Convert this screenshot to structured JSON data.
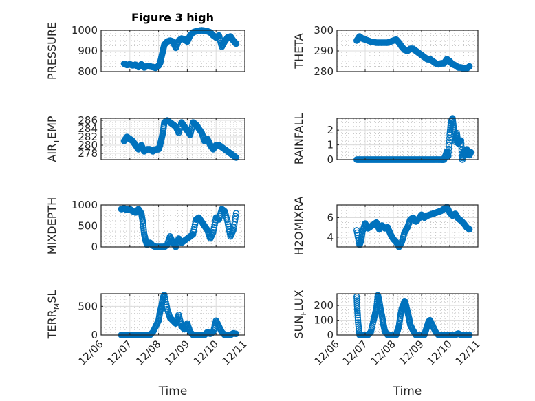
{
  "figure_title": "Figure 3 high",
  "chart_data": [
    {
      "type": "scatter",
      "title": "Figure 3 high",
      "xlabel": "",
      "ylabel": "PRESSURE",
      "ylabel_parts": [
        "PRESSURE"
      ],
      "ylim": [
        800,
        1000
      ],
      "yticks": [
        800,
        900,
        1000
      ],
      "ytick_labels": [
        "800",
        "900",
        "1000"
      ],
      "xlim_days": [
        0,
        5
      ],
      "xtick_labels": [],
      "grid": true,
      "minor_grid": true,
      "marker": "o",
      "color": "#0072BD",
      "x": [
        0.8,
        0.9,
        1.0,
        1.1,
        1.2,
        1.3,
        1.4,
        1.5,
        1.6,
        1.7,
        1.8,
        1.9,
        2.0,
        2.05,
        2.1,
        2.15,
        2.2,
        2.3,
        2.4,
        2.5,
        2.6,
        2.7,
        2.8,
        2.9,
        3.0,
        3.1,
        3.2,
        3.3,
        3.4,
        3.5,
        3.6,
        3.7,
        3.8,
        3.9,
        4.0,
        4.1,
        4.2,
        4.3,
        4.4,
        4.5,
        4.6,
        4.7
      ],
      "y": [
        838,
        832,
        835,
        830,
        833,
        822,
        835,
        820,
        826,
        825,
        822,
        818,
        828,
        840,
        870,
        900,
        930,
        945,
        950,
        945,
        915,
        950,
        960,
        955,
        945,
        975,
        990,
        995,
        998,
        1000,
        998,
        995,
        990,
        975,
        965,
        975,
        920,
        945,
        965,
        970,
        950,
        935
      ]
    },
    {
      "type": "scatter",
      "ylabel": "THETA",
      "ylabel_parts": [
        "THETA"
      ],
      "ylim": [
        280,
        300
      ],
      "yticks": [
        280,
        290,
        300
      ],
      "ytick_labels": [
        "280",
        "290",
        "300"
      ],
      "xlim_days": [
        0,
        5
      ],
      "xtick_labels": [],
      "grid": true,
      "minor_grid": true,
      "marker": "o",
      "color": "#0072BD",
      "x": [
        0.7,
        0.8,
        0.9,
        1.0,
        1.2,
        1.4,
        1.6,
        1.8,
        2.0,
        2.1,
        2.2,
        2.3,
        2.4,
        2.5,
        2.6,
        2.7,
        2.8,
        2.9,
        3.0,
        3.1,
        3.2,
        3.3,
        3.4,
        3.5,
        3.6,
        3.7,
        3.8,
        3.9,
        4.0,
        4.1,
        4.2,
        4.3,
        4.4,
        4.5,
        4.6,
        4.7
      ],
      "y": [
        295,
        297,
        296,
        295.5,
        294.5,
        294,
        294,
        294,
        295,
        295.5,
        294,
        292,
        290.5,
        290,
        291,
        291,
        290,
        289,
        288,
        287,
        286,
        286,
        285,
        284,
        283.5,
        284,
        284,
        286,
        285,
        283.5,
        283,
        282,
        282,
        281.5,
        281.5,
        282.5
      ]
    },
    {
      "type": "scatter",
      "ylabel": "AIR_TEMP",
      "ylabel_parts": [
        "AIR",
        "T",
        "EMP"
      ],
      "ylim": [
        276.5,
        286.5
      ],
      "yticks": [
        278,
        280,
        282,
        284,
        286
      ],
      "ytick_labels": [
        "278",
        "280",
        "282",
        "284",
        "286"
      ],
      "xlim_days": [
        0,
        5
      ],
      "xtick_labels": [],
      "grid": true,
      "minor_grid": true,
      "marker": "o",
      "color": "#0072BD",
      "x": [
        0.8,
        0.9,
        1.0,
        1.1,
        1.2,
        1.3,
        1.4,
        1.5,
        1.6,
        1.7,
        1.8,
        1.9,
        2.0,
        2.05,
        2.1,
        2.15,
        2.2,
        2.3,
        2.4,
        2.5,
        2.6,
        2.7,
        2.8,
        2.9,
        3.0,
        3.1,
        3.2,
        3.3,
        3.4,
        3.5,
        3.6,
        3.7,
        3.8,
        3.9,
        4.0,
        4.1,
        4.2,
        4.3,
        4.4,
        4.5,
        4.6,
        4.7
      ],
      "y": [
        281,
        282,
        281.5,
        281,
        280,
        279,
        280,
        278.5,
        279,
        279,
        278.5,
        279,
        279,
        280,
        281.5,
        283,
        285.5,
        286,
        285.5,
        285,
        284.5,
        283,
        285.5,
        284.5,
        283.5,
        282.5,
        285.5,
        285,
        284,
        283,
        281,
        281.5,
        280,
        279,
        280,
        280,
        279.5,
        279,
        278.5,
        278,
        277.5,
        277
      ]
    },
    {
      "type": "scatter",
      "ylabel": "RAINFALL",
      "ylabel_parts": [
        "RAINFALL"
      ],
      "ylim": [
        0,
        2.8
      ],
      "yticks": [
        0,
        1,
        2
      ],
      "ytick_labels": [
        "0",
        "1",
        "2"
      ],
      "xlim_days": [
        0,
        5
      ],
      "xtick_labels": [],
      "grid": true,
      "minor_grid": true,
      "marker": "o",
      "color": "#0072BD",
      "x": [
        0.7,
        0.8,
        0.9,
        1.0,
        1.1,
        1.2,
        1.3,
        1.4,
        1.5,
        1.6,
        1.7,
        1.8,
        1.9,
        2.0,
        2.1,
        2.2,
        2.3,
        2.4,
        2.5,
        2.6,
        2.7,
        2.8,
        2.9,
        3.0,
        3.1,
        3.2,
        3.3,
        3.4,
        3.5,
        3.6,
        3.7,
        3.75,
        3.8,
        3.9,
        3.95,
        4.0,
        4.05,
        4.1,
        4.15,
        4.2,
        4.25,
        4.3,
        4.35,
        4.4,
        4.45,
        4.5,
        4.55,
        4.6,
        4.65,
        4.7,
        4.75
      ],
      "y": [
        0,
        0,
        0,
        0,
        0,
        0,
        0,
        0,
        0,
        0,
        0,
        0,
        0,
        0,
        0,
        0,
        0,
        0,
        0,
        0,
        0,
        0,
        0,
        0,
        0,
        0,
        0,
        0,
        0,
        0,
        0,
        0,
        0,
        0.55,
        0.25,
        1.7,
        2.6,
        2.8,
        2.0,
        1.2,
        1.8,
        1.1,
        1.2,
        1.3,
        0,
        0.6,
        0.3,
        0.7,
        0.5,
        0.3,
        0.5
      ]
    },
    {
      "type": "scatter",
      "ylabel": "MIXDEPTH",
      "ylabel_parts": [
        "MIXDEPTH"
      ],
      "ylim": [
        0,
        1000
      ],
      "yticks": [
        0,
        500,
        1000
      ],
      "ytick_labels": [
        "0",
        "500",
        "1000"
      ],
      "xlim_days": [
        0,
        5
      ],
      "xtick_labels": [],
      "grid": true,
      "minor_grid": true,
      "marker": "o",
      "color": "#0072BD",
      "x": [
        0.7,
        0.8,
        0.9,
        1.0,
        1.1,
        1.2,
        1.3,
        1.4,
        1.45,
        1.5,
        1.55,
        1.6,
        1.7,
        1.8,
        1.9,
        2.0,
        2.1,
        2.2,
        2.3,
        2.4,
        2.5,
        2.6,
        2.7,
        2.8,
        2.9,
        3.0,
        3.1,
        3.2,
        3.3,
        3.4,
        3.5,
        3.6,
        3.7,
        3.8,
        3.9,
        4.0,
        4.1,
        4.2,
        4.3,
        4.4,
        4.5,
        4.6,
        4.7
      ],
      "y": [
        900,
        920,
        880,
        900,
        850,
        820,
        900,
        800,
        600,
        300,
        150,
        50,
        100,
        30,
        0,
        0,
        0,
        0,
        50,
        250,
        100,
        0,
        200,
        100,
        150,
        200,
        250,
        300,
        650,
        700,
        600,
        500,
        400,
        200,
        350,
        700,
        650,
        900,
        850,
        600,
        250,
        400,
        800
      ]
    },
    {
      "type": "scatter",
      "ylabel": "H2OMIXRA",
      "ylabel_parts": [
        "H2OMIXRA"
      ],
      "ylim": [
        3,
        7.3
      ],
      "yticks": [
        4,
        6
      ],
      "ytick_labels": [
        "4",
        "6"
      ],
      "xlim_days": [
        0,
        5
      ],
      "xtick_labels": [],
      "grid": true,
      "minor_grid": true,
      "marker": "o",
      "color": "#0072BD",
      "x": [
        0.7,
        0.8,
        0.85,
        0.9,
        1.0,
        1.1,
        1.2,
        1.3,
        1.4,
        1.5,
        1.6,
        1.7,
        1.8,
        1.9,
        2.0,
        2.1,
        2.2,
        2.3,
        2.4,
        2.5,
        2.6,
        2.7,
        2.8,
        2.9,
        3.0,
        3.1,
        3.2,
        3.3,
        3.4,
        3.5,
        3.6,
        3.7,
        3.8,
        3.9,
        4.0,
        4.1,
        4.2,
        4.3,
        4.4,
        4.5,
        4.6,
        4.7
      ],
      "y": [
        4.7,
        3.2,
        3.6,
        4.5,
        5.4,
        4.9,
        5.1,
        5.3,
        5.5,
        4.8,
        5.2,
        4.9,
        5.0,
        4.3,
        3.8,
        3.5,
        3.0,
        3.5,
        4.5,
        5.0,
        5.8,
        6.0,
        5.6,
        5.9,
        6.3,
        6.0,
        6.2,
        6.3,
        6.4,
        6.5,
        6.6,
        6.7,
        6.9,
        7.1,
        6.5,
        6.2,
        6.4,
        5.9,
        5.7,
        5.4,
        5.0,
        4.8
      ]
    },
    {
      "type": "scatter",
      "ylabel": "TERR_MSL",
      "ylabel_parts": [
        "TERR",
        "M",
        "SL"
      ],
      "ylim": [
        0,
        720
      ],
      "yticks": [
        0,
        500
      ],
      "ytick_labels": [
        "0",
        "500"
      ],
      "xlim_days": [
        0,
        5
      ],
      "xlabel": "Time",
      "xticks_days": [
        0,
        1,
        2,
        3,
        4,
        5
      ],
      "xtick_labels": [
        "12/06",
        "12/07",
        "12/08",
        "12/09",
        "12/10",
        "12/11"
      ],
      "grid": true,
      "minor_grid": true,
      "marker": "o",
      "color": "#0072BD",
      "x": [
        0.7,
        0.8,
        0.9,
        1.0,
        1.1,
        1.2,
        1.3,
        1.4,
        1.5,
        1.6,
        1.7,
        1.8,
        1.9,
        2.0,
        2.05,
        2.1,
        2.15,
        2.2,
        2.3,
        2.4,
        2.5,
        2.6,
        2.7,
        2.8,
        2.9,
        3.0,
        3.1,
        3.2,
        3.3,
        3.4,
        3.5,
        3.6,
        3.7,
        3.8,
        3.9,
        4.0,
        4.1,
        4.2,
        4.3,
        4.4,
        4.5,
        4.6,
        4.7
      ],
      "y": [
        0,
        0,
        0,
        0,
        0,
        0,
        0,
        0,
        0,
        0,
        0,
        50,
        150,
        250,
        400,
        500,
        650,
        700,
        450,
        300,
        250,
        200,
        350,
        150,
        100,
        200,
        50,
        0,
        0,
        0,
        0,
        0,
        50,
        20,
        50,
        250,
        150,
        50,
        0,
        0,
        0,
        30,
        20
      ]
    },
    {
      "type": "scatter",
      "ylabel": "SUN_FLUX",
      "ylabel_parts": [
        "SUN",
        "F",
        "LUX"
      ],
      "ylim": [
        0,
        280
      ],
      "yticks": [
        0,
        100,
        200
      ],
      "ytick_labels": [
        "0",
        "100",
        "200"
      ],
      "xlim_days": [
        0,
        5
      ],
      "xlabel": "Time",
      "xticks_days": [
        0,
        1,
        2,
        3,
        4,
        5
      ],
      "xtick_labels": [
        "12/06",
        "12/07",
        "12/08",
        "12/09",
        "12/10",
        "12/11"
      ],
      "grid": true,
      "minor_grid": true,
      "marker": "o",
      "color": "#0072BD",
      "x": [
        0.7,
        0.72,
        0.75,
        0.8,
        0.9,
        1.0,
        1.1,
        1.2,
        1.3,
        1.35,
        1.4,
        1.45,
        1.5,
        1.55,
        1.6,
        1.65,
        1.7,
        1.8,
        1.9,
        2.0,
        2.1,
        2.15,
        2.2,
        2.25,
        2.3,
        2.35,
        2.4,
        2.45,
        2.5,
        2.55,
        2.6,
        2.7,
        2.8,
        2.9,
        3.0,
        3.1,
        3.15,
        3.2,
        3.25,
        3.3,
        3.4,
        3.5,
        3.6,
        3.7,
        3.8,
        3.9,
        4.0,
        4.1,
        4.2,
        4.3,
        4.4,
        4.5,
        4.6,
        4.7
      ],
      "y": [
        260,
        180,
        85,
        0,
        0,
        0,
        0,
        20,
        100,
        140,
        180,
        270,
        230,
        170,
        125,
        70,
        25,
        0,
        0,
        0,
        0,
        30,
        60,
        130,
        180,
        200,
        230,
        200,
        160,
        120,
        70,
        30,
        0,
        0,
        0,
        0,
        30,
        60,
        90,
        100,
        60,
        20,
        0,
        0,
        0,
        0,
        0,
        0,
        0,
        10,
        0,
        0,
        0,
        0
      ]
    }
  ]
}
